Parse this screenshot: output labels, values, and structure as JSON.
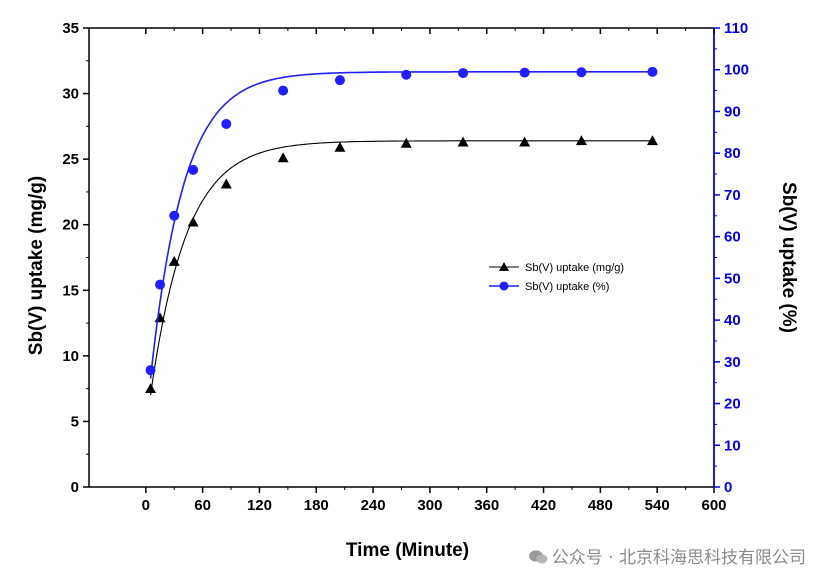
{
  "chart_data": {
    "type": "line",
    "title": "",
    "xlabel": "Time (Minute)",
    "ylabel": "Sb(V) uptake (mg/g)",
    "y2label": "Sb(V) uptake (%)",
    "xlim": [
      -60,
      600
    ],
    "xticks": [
      0,
      60,
      120,
      180,
      240,
      300,
      360,
      420,
      480,
      540,
      600
    ],
    "ylim": [
      0,
      35
    ],
    "yticks": [
      0,
      5,
      10,
      15,
      20,
      25,
      30,
      35
    ],
    "y2lim": [
      0,
      110
    ],
    "y2ticks": [
      0,
      10,
      20,
      30,
      40,
      50,
      60,
      70,
      80,
      90,
      100,
      110
    ],
    "grid": false,
    "legend_position": "center-right",
    "series": [
      {
        "name": "Sb(V) uptake (mg/g)",
        "axis": "left",
        "color": "#000000",
        "marker": "triangle",
        "x": [
          5,
          15,
          30,
          50,
          85,
          145,
          205,
          275,
          335,
          400,
          460,
          535
        ],
        "values": [
          7.5,
          12.9,
          17.2,
          20.2,
          23.1,
          25.1,
          25.9,
          26.2,
          26.3,
          26.3,
          26.4,
          26.4
        ],
        "fit": {
          "model": "exponential",
          "plateau": 26.4,
          "start": 7.0,
          "tau": 38
        }
      },
      {
        "name": "Sb(V) uptake (%)",
        "axis": "right",
        "color": "#1f1fff",
        "marker": "circle",
        "x": [
          5,
          15,
          30,
          50,
          85,
          145,
          205,
          275,
          335,
          400,
          460,
          535
        ],
        "values": [
          28,
          48.5,
          65,
          76,
          87,
          95,
          97.5,
          98.8,
          99.2,
          99.3,
          99.4,
          99.5
        ],
        "fit": {
          "model": "exponential",
          "plateau": 99.5,
          "start": 26,
          "tau": 35
        }
      }
    ]
  },
  "colors": {
    "axis": "#000000",
    "right_axis": "#0000ee"
  },
  "watermark": {
    "text": "公众号 · 北京科海思科技有限公司"
  }
}
